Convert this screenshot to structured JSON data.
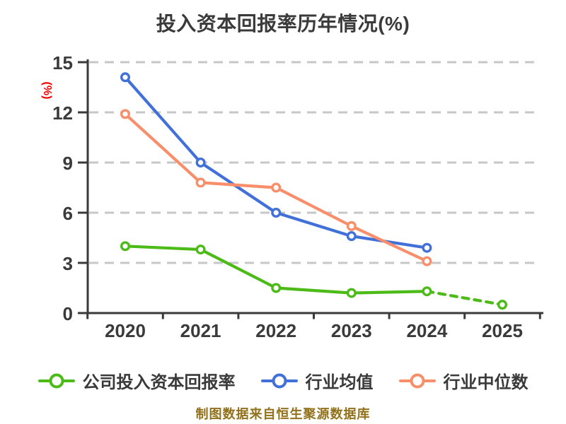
{
  "page": {
    "background": "#ffffff"
  },
  "chart_data": {
    "type": "line",
    "title": "投入资本回报率历年情况(%)",
    "xlabel": "",
    "ylabel": "(%)",
    "categories": [
      "2020",
      "2021",
      "2022",
      "2023",
      "2024",
      "2025"
    ],
    "y_ticks": [
      0,
      3,
      6,
      9,
      12,
      15
    ],
    "ylim": [
      0,
      15
    ],
    "grid": "horizontal dashed",
    "legend_position": "bottom",
    "series": [
      {
        "id": "company-roic",
        "name": "公司投入资本回报率",
        "color": "#4cbb17",
        "values": [
          4.0,
          3.8,
          1.5,
          1.2,
          1.3,
          0.5
        ],
        "segment_2024_2025": "dashed"
      },
      {
        "id": "industry-average",
        "name": "行业均值",
        "color": "#4170d8",
        "values": [
          14.1,
          9.0,
          6.0,
          4.6,
          3.9,
          null
        ]
      },
      {
        "id": "industry-median",
        "name": "行业中位数",
        "color": "#f98e6b",
        "values": [
          11.9,
          7.8,
          7.5,
          5.2,
          3.1,
          null
        ]
      }
    ]
  },
  "footer": {
    "text": "制图数据来自恒生聚源数据库",
    "color": "#91711b"
  },
  "colors": {
    "title": "#3a3a3a",
    "axis": "#3a3a3a",
    "tick_label": "#3a3a3a",
    "gridline": "#c7c7c7",
    "ylabel_red": "#f20000",
    "marker_fill": "#ffffff"
  }
}
